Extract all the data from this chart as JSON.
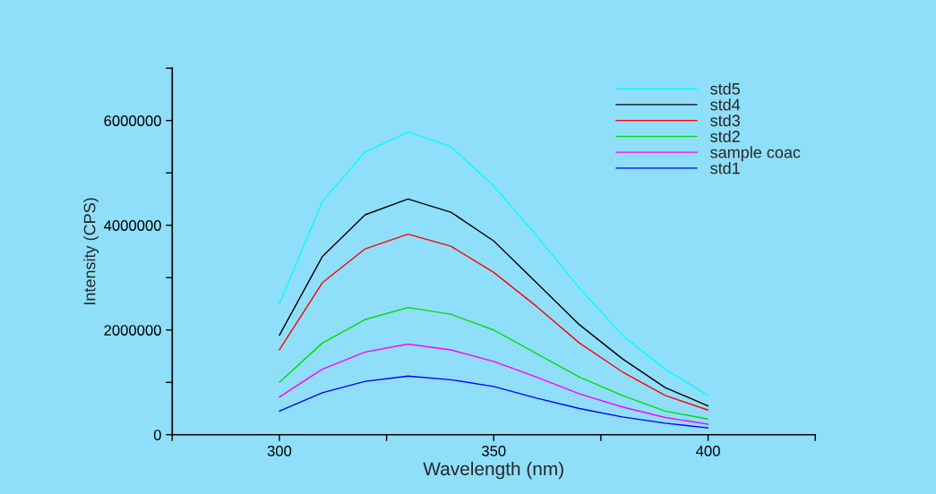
{
  "chart_data": {
    "type": "line",
    "xlabel": "Wavelength (nm)",
    "ylabel": "Intensity (CPS)",
    "x": [
      300,
      310,
      320,
      330,
      340,
      350,
      360,
      370,
      380,
      390,
      400
    ],
    "series": [
      {
        "name": "std5",
        "color": "#00ffff",
        "values": [
          2500000,
          4450000,
          5400000,
          5780000,
          5500000,
          4750000,
          3800000,
          2800000,
          1900000,
          1250000,
          750000
        ]
      },
      {
        "name": "std4",
        "color": "#000000",
        "values": [
          1900000,
          3400000,
          4200000,
          4500000,
          4250000,
          3700000,
          2900000,
          2100000,
          1450000,
          900000,
          550000
        ]
      },
      {
        "name": "std3",
        "color": "#ff0000",
        "values": [
          1620000,
          2900000,
          3550000,
          3830000,
          3600000,
          3100000,
          2450000,
          1750000,
          1200000,
          750000,
          470000
        ]
      },
      {
        "name": "std2",
        "color": "#00dd00",
        "values": [
          1000000,
          1750000,
          2200000,
          2430000,
          2300000,
          2000000,
          1550000,
          1100000,
          750000,
          450000,
          300000
        ]
      },
      {
        "name": "sample coac",
        "color": "#ff00ff",
        "values": [
          720000,
          1250000,
          1580000,
          1730000,
          1620000,
          1400000,
          1100000,
          780000,
          530000,
          330000,
          200000
        ]
      },
      {
        "name": "std1",
        "color": "#0000ff",
        "values": [
          450000,
          800000,
          1020000,
          1120000,
          1050000,
          920000,
          700000,
          500000,
          340000,
          220000,
          130000
        ]
      }
    ],
    "xlim": [
      275,
      425
    ],
    "xticks": [
      {
        "value": 275,
        "label": null
      },
      300,
      {
        "value": 325,
        "label": null
      },
      350,
      {
        "value": 375,
        "label": null
      },
      400,
      {
        "value": 425,
        "label": null
      }
    ],
    "ylim": [
      0,
      7000000
    ],
    "yticks": [
      0,
      {
        "value": 1000000,
        "label": null
      },
      2000000,
      {
        "value": 3000000,
        "label": null
      },
      4000000,
      {
        "value": 5000000,
        "label": null
      },
      6000000,
      {
        "value": 7000000,
        "label": null
      }
    ],
    "grid": false,
    "legend": "top right",
    "marker": "none",
    "line_style": "solid"
  }
}
